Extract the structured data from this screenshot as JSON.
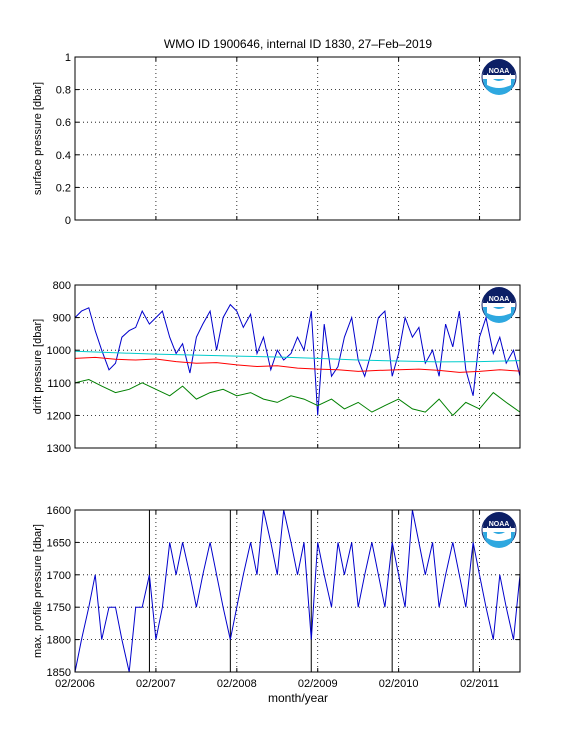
{
  "title": "WMO ID 1900646, internal ID 1830, 27–Feb–2019",
  "xlabel": "month/year",
  "x_tick_labels": [
    "02/2006",
    "02/2007",
    "02/2008",
    "02/2009",
    "02/2010",
    "02/2011"
  ],
  "logo_text": "NOAA",
  "colors": {
    "blue": "#0000cc",
    "cyan": "#00cccc",
    "red": "#ff0000",
    "green": "#008000",
    "noaa_blue": "#1f4fa8",
    "noaa_navy": "#0c1f66"
  },
  "chart_data": [
    {
      "type": "line",
      "ylabel": "surface pressure [dbar]",
      "ylim": [
        0,
        1
      ],
      "yticks": [
        0,
        0.2,
        0.4,
        0.6,
        0.8,
        1
      ],
      "y_tick_labels": [
        "0",
        "0.2",
        "0.4",
        "0.6",
        "0.8",
        "1"
      ],
      "xlim": [
        2006.0,
        2011.5
      ],
      "grid": true,
      "series": []
    },
    {
      "type": "line",
      "ylabel": "drift pressure [dbar]",
      "ylim": [
        800,
        1300
      ],
      "y_reversed": true,
      "yticks": [
        800,
        900,
        1000,
        1100,
        1200,
        1300
      ],
      "y_tick_labels": [
        "800",
        "900",
        "1000",
        "1100",
        "1200",
        "1300"
      ],
      "xlim": [
        2006.0,
        2011.5
      ],
      "grid": true,
      "series": [
        {
          "color": "blue",
          "x": [
            2006.0,
            2006.08,
            2006.17,
            2006.25,
            2006.33,
            2006.42,
            2006.5,
            2006.58,
            2006.67,
            2006.75,
            2006.83,
            2006.92,
            2007.0,
            2007.08,
            2007.17,
            2007.25,
            2007.33,
            2007.42,
            2007.5,
            2007.58,
            2007.67,
            2007.75,
            2007.83,
            2007.92,
            2008.0,
            2008.08,
            2008.17,
            2008.25,
            2008.33,
            2008.42,
            2008.5,
            2008.58,
            2008.67,
            2008.75,
            2008.83,
            2008.92,
            2009.0,
            2009.08,
            2009.17,
            2009.25,
            2009.33,
            2009.42,
            2009.5,
            2009.58,
            2009.67,
            2009.75,
            2009.83,
            2009.92,
            2010.0,
            2010.08,
            2010.17,
            2010.25,
            2010.33,
            2010.42,
            2010.5,
            2010.58,
            2010.67,
            2010.75,
            2010.83,
            2010.92,
            2011.0,
            2011.08,
            2011.17,
            2011.25,
            2011.33,
            2011.42,
            2011.5
          ],
          "y": [
            900,
            880,
            870,
            940,
            1000,
            1060,
            1040,
            960,
            940,
            930,
            880,
            920,
            900,
            880,
            960,
            1010,
            980,
            1070,
            960,
            920,
            880,
            1000,
            900,
            860,
            880,
            930,
            890,
            1010,
            960,
            1060,
            1000,
            1030,
            1010,
            960,
            1000,
            880,
            1200,
            920,
            1080,
            1050,
            960,
            900,
            1030,
            1080,
            1000,
            900,
            880,
            1080,
            1010,
            900,
            960,
            930,
            1040,
            1000,
            1080,
            920,
            990,
            880,
            1060,
            1140,
            960,
            900,
            1010,
            960,
            1040,
            1000,
            1080
          ]
        },
        {
          "color": "cyan",
          "x": [
            2006.0,
            2006.5,
            2007.0,
            2007.5,
            2008.0,
            2008.5,
            2009.0,
            2009.5,
            2010.0,
            2010.5,
            2011.0,
            2011.5
          ],
          "y": [
            1003,
            1008,
            1012,
            1015,
            1018,
            1021,
            1025,
            1030,
            1033,
            1036,
            1035,
            1032
          ]
        },
        {
          "color": "red",
          "x": [
            2006.0,
            2006.25,
            2006.5,
            2006.75,
            2007.0,
            2007.25,
            2007.5,
            2007.75,
            2008.0,
            2008.25,
            2008.5,
            2008.75,
            2009.0,
            2009.25,
            2009.5,
            2009.75,
            2010.0,
            2010.25,
            2010.5,
            2010.75,
            2011.0,
            2011.25,
            2011.5
          ],
          "y": [
            1025,
            1022,
            1028,
            1030,
            1027,
            1035,
            1040,
            1038,
            1045,
            1050,
            1048,
            1055,
            1058,
            1060,
            1065,
            1062,
            1060,
            1058,
            1062,
            1068,
            1065,
            1060,
            1064
          ]
        },
        {
          "color": "green",
          "x": [
            2006.0,
            2006.17,
            2006.33,
            2006.5,
            2006.67,
            2006.83,
            2007.0,
            2007.17,
            2007.33,
            2007.5,
            2007.67,
            2007.83,
            2008.0,
            2008.17,
            2008.33,
            2008.5,
            2008.67,
            2008.83,
            2009.0,
            2009.17,
            2009.33,
            2009.5,
            2009.67,
            2009.83,
            2010.0,
            2010.17,
            2010.33,
            2010.5,
            2010.67,
            2010.83,
            2011.0,
            2011.17,
            2011.33,
            2011.5
          ],
          "y": [
            1100,
            1090,
            1110,
            1130,
            1120,
            1100,
            1120,
            1140,
            1110,
            1150,
            1130,
            1120,
            1140,
            1130,
            1150,
            1160,
            1140,
            1150,
            1170,
            1150,
            1180,
            1160,
            1190,
            1170,
            1150,
            1180,
            1190,
            1150,
            1200,
            1160,
            1180,
            1130,
            1160,
            1190
          ]
        }
      ]
    },
    {
      "type": "line",
      "ylabel": "max. profile pressure [dbar]",
      "ylim": [
        1600,
        1850
      ],
      "y_reversed": true,
      "yticks": [
        1600,
        1650,
        1700,
        1750,
        1800,
        1850
      ],
      "y_tick_labels": [
        "1600",
        "1650",
        "1700",
        "1750",
        "1800",
        "1850"
      ],
      "xlim": [
        2006.0,
        2011.5
      ],
      "grid": true,
      "solid_vlines": [
        2006.92,
        2007.92,
        2008.92,
        2009.92,
        2010.92
      ],
      "series": [
        {
          "color": "blue",
          "x": [
            2006.0,
            2006.08,
            2006.17,
            2006.25,
            2006.33,
            2006.42,
            2006.5,
            2006.58,
            2006.67,
            2006.75,
            2006.83,
            2006.92,
            2007.0,
            2007.08,
            2007.17,
            2007.25,
            2007.33,
            2007.42,
            2007.5,
            2007.58,
            2007.67,
            2007.75,
            2007.83,
            2007.92,
            2008.0,
            2008.08,
            2008.17,
            2008.25,
            2008.33,
            2008.42,
            2008.5,
            2008.58,
            2008.67,
            2008.75,
            2008.83,
            2008.92,
            2009.0,
            2009.08,
            2009.17,
            2009.25,
            2009.33,
            2009.42,
            2009.5,
            2009.58,
            2009.67,
            2009.75,
            2009.83,
            2009.92,
            2010.0,
            2010.08,
            2010.17,
            2010.25,
            2010.33,
            2010.42,
            2010.5,
            2010.58,
            2010.67,
            2010.75,
            2010.83,
            2010.92,
            2011.0,
            2011.08,
            2011.17,
            2011.25,
            2011.33,
            2011.42,
            2011.5
          ],
          "y": [
            1850,
            1800,
            1750,
            1700,
            1800,
            1750,
            1750,
            1800,
            1850,
            1750,
            1750,
            1700,
            1800,
            1750,
            1650,
            1700,
            1650,
            1700,
            1750,
            1700,
            1650,
            1700,
            1750,
            1800,
            1750,
            1700,
            1650,
            1700,
            1600,
            1650,
            1700,
            1600,
            1650,
            1700,
            1650,
            1800,
            1650,
            1700,
            1750,
            1650,
            1700,
            1650,
            1750,
            1700,
            1650,
            1700,
            1750,
            1650,
            1700,
            1750,
            1600,
            1650,
            1700,
            1650,
            1750,
            1700,
            1650,
            1700,
            1750,
            1650,
            1700,
            1750,
            1800,
            1700,
            1750,
            1800,
            1700
          ]
        }
      ]
    }
  ]
}
